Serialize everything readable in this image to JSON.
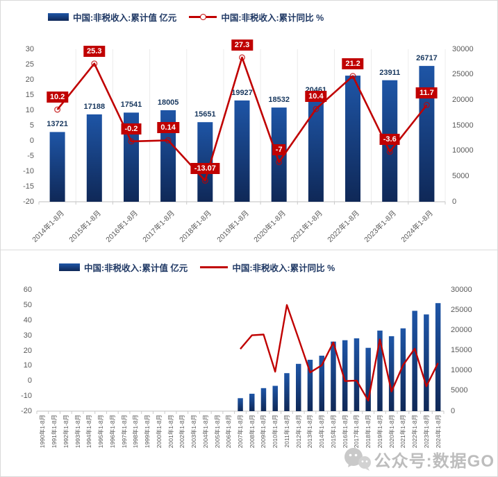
{
  "colors": {
    "bar_gradient_top": "#1E55A6",
    "bar_gradient_bottom": "#0F2857",
    "line": "#C00000",
    "marker_ring": "#C0000",
    "label_box_bg": "#C00000",
    "label_box_text": "#FFFFFF",
    "bar_label": "#17375E",
    "legend_text": "#1F3864",
    "axis_text": "#595959",
    "axis_line": "#BFBFBF",
    "tick_line": "#C9C9C9",
    "gridline": "#ECECEC",
    "watermark": "#919191"
  },
  "watermark": {
    "text": "公众号:数据GO",
    "icon": "wechat-bubbles-icon"
  },
  "chart_data": [
    {
      "type": "bar+line",
      "title": "",
      "legend_position": "top",
      "gridlines": "vertical-faint",
      "x_label_style": "diagonal-45",
      "categories": [
        "2014年1-8月",
        "2015年1-8月",
        "2016年1-8月",
        "2017年1-8月",
        "2018年1-8月",
        "2019年1-8月",
        "2020年1-8月",
        "2021年1-8月",
        "2022年1-8月",
        "2023年1-8月",
        "2024年1-8月"
      ],
      "left_axis": {
        "min": -20,
        "max": 30,
        "step": 5,
        "ticks": [
          30,
          25,
          20,
          15,
          10,
          5,
          0,
          -5,
          -10,
          -15,
          -20
        ]
      },
      "right_axis": {
        "min": 0,
        "max": 30000,
        "step": 5000,
        "ticks": [
          30000,
          25000,
          20000,
          15000,
          10000,
          5000,
          0
        ]
      },
      "series": [
        {
          "name": "中国:非税收入:累计值 亿元",
          "type": "bar",
          "axis": "right",
          "values": [
            13721,
            17188,
            17541,
            18005,
            15651,
            19927,
            18532,
            20461,
            24800,
            23911,
            26717
          ],
          "labels": [
            "13721",
            "17188",
            "17541",
            "18005",
            "15651",
            "19927",
            "18532",
            "20461",
            "",
            "23911",
            "26717"
          ],
          "note": "2022 bar label hidden behind red line label box"
        },
        {
          "name": "中国:非税收入:累计同比 %",
          "type": "line",
          "axis": "left",
          "markers": true,
          "values": [
            10.2,
            25.3,
            -0.2,
            0.14,
            -13.07,
            27.3,
            -7,
            10.4,
            21.2,
            -3.6,
            11.7
          ],
          "labels": [
            "10.2",
            "25.3",
            "-0.2",
            "0.14",
            "-13.07",
            "27.3",
            "-7",
            "10.4",
            "21.2",
            "-3.6",
            "11.7"
          ],
          "label_style": "red-box-white-text"
        }
      ]
    },
    {
      "type": "bar+line",
      "title": "",
      "legend_position": "top",
      "gridlines": "none",
      "x_label_style": "vertical-90",
      "categories": [
        "1990年1-8月",
        "1991年1-8月",
        "1992年1-8月",
        "1993年1-8月",
        "1994年1-8月",
        "1995年1-8月",
        "1996年1-8月",
        "1997年1-8月",
        "1998年1-8月",
        "1999年1-8月",
        "2000年1-8月",
        "2001年1-8月",
        "2002年1-8月",
        "2003年1-8月",
        "2004年1-8月",
        "2005年1-8月",
        "2006年1-8月",
        "2007年1-8月",
        "2008年1-8月",
        "2009年1-8月",
        "2010年1-8月",
        "2011年1-8月",
        "2012年1-8月",
        "2013年1-8月",
        "2014年1-8月",
        "2015年1-8月",
        "2016年1-8月",
        "2017年1-8月",
        "2018年1-8月",
        "2019年1-8月",
        "2020年1-8月",
        "2021年1-8月",
        "2022年1-8月",
        "2023年1-8月",
        "2024年1-8月"
      ],
      "left_axis": {
        "min": -20,
        "max": 60,
        "step": 10,
        "ticks": [
          60,
          50,
          40,
          30,
          20,
          10,
          0,
          -10,
          -20
        ]
      },
      "right_axis": {
        "min": 0,
        "max": 30000,
        "step": 5000,
        "ticks": [
          30000,
          25000,
          20000,
          15000,
          10000,
          5000,
          0
        ]
      },
      "series": [
        {
          "name": "中国:非税收入:累计值 亿元",
          "type": "bar",
          "axis": "right",
          "values": [
            null,
            null,
            null,
            null,
            null,
            null,
            null,
            null,
            null,
            null,
            null,
            null,
            null,
            null,
            null,
            null,
            null,
            3200,
            4300,
            5700,
            6250,
            9400,
            11700,
            12700,
            13721,
            17188,
            17541,
            18005,
            15651,
            19927,
            18532,
            20461,
            24800,
            23911,
            26717
          ]
        },
        {
          "name": "中国:非税收入:累计同比 %",
          "type": "line",
          "axis": "left",
          "markers": false,
          "values": [
            null,
            null,
            null,
            null,
            null,
            null,
            null,
            null,
            null,
            null,
            null,
            null,
            null,
            null,
            null,
            null,
            null,
            21,
            30,
            30.5,
            6,
            50,
            28,
            5.5,
            10.2,
            25.3,
            -0.2,
            0.14,
            -13.07,
            27.3,
            -7,
            10.4,
            21.2,
            -3.6,
            11.7
          ]
        }
      ]
    }
  ]
}
